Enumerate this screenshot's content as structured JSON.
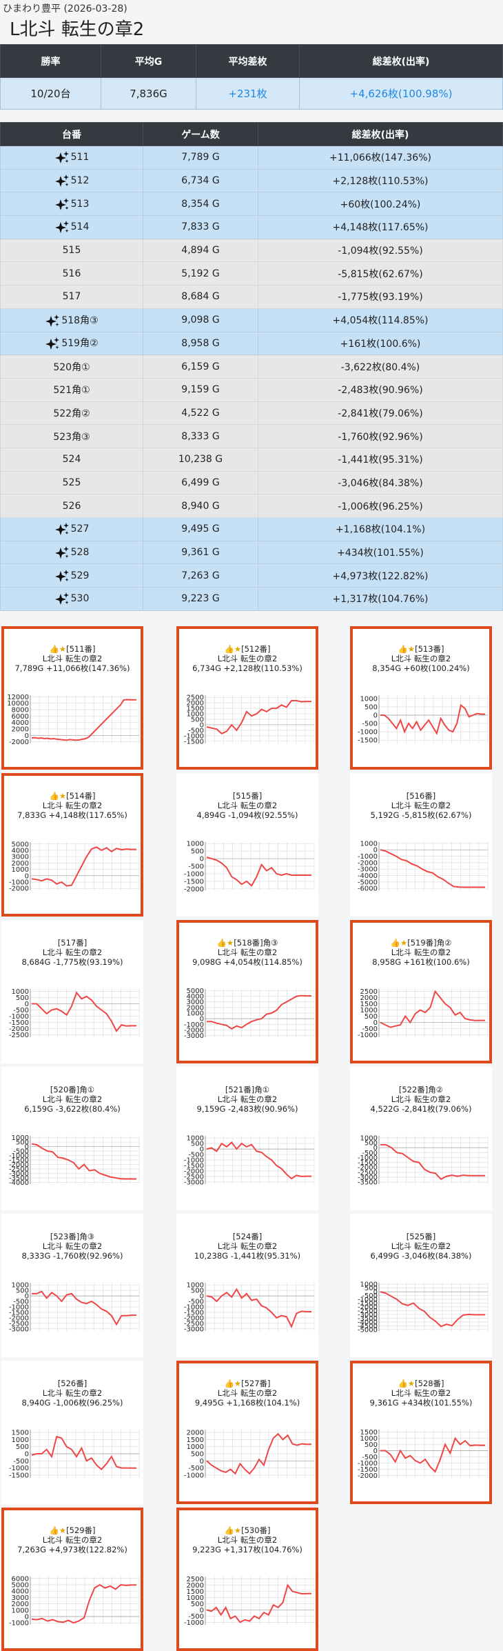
{
  "header": {
    "store_date": "ひまわり豊平 (2026-03-28)",
    "title": "L北斗 転生の章2"
  },
  "summary": {
    "headers": [
      "勝率",
      "平均G",
      "平均差枚",
      "総差枚(出率)"
    ],
    "values": [
      "10/20台",
      "7,836G",
      "+231枚",
      "+4,626枚(100.98%)"
    ]
  },
  "machines": {
    "headers": [
      "台番",
      "ゲーム数",
      "総差枚(出率)"
    ],
    "rows": [
      {
        "no": "511",
        "games": "7,789 G",
        "diff": "+11,066枚(147.36%)",
        "hl": true
      },
      {
        "no": "512",
        "games": "6,734 G",
        "diff": "+2,128枚(110.53%)",
        "hl": true
      },
      {
        "no": "513",
        "games": "8,354 G",
        "diff": "+60枚(100.24%)",
        "hl": true
      },
      {
        "no": "514",
        "games": "7,833 G",
        "diff": "+4,148枚(117.65%)",
        "hl": true
      },
      {
        "no": "515",
        "games": "4,894 G",
        "diff": "-1,094枚(92.55%)",
        "hl": false
      },
      {
        "no": "516",
        "games": "5,192 G",
        "diff": "-5,815枚(62.67%)",
        "hl": false
      },
      {
        "no": "517",
        "games": "8,684 G",
        "diff": "-1,775枚(93.19%)",
        "hl": false
      },
      {
        "no": "518角③",
        "games": "9,098 G",
        "diff": "+4,054枚(114.85%)",
        "hl": true
      },
      {
        "no": "519角②",
        "games": "8,958 G",
        "diff": "+161枚(100.6%)",
        "hl": true
      },
      {
        "no": "520角①",
        "games": "6,159 G",
        "diff": "-3,622枚(80.4%)",
        "hl": false
      },
      {
        "no": "521角①",
        "games": "9,159 G",
        "diff": "-2,483枚(90.96%)",
        "hl": false
      },
      {
        "no": "522角②",
        "games": "4,522 G",
        "diff": "-2,841枚(79.06%)",
        "hl": false
      },
      {
        "no": "523角③",
        "games": "8,333 G",
        "diff": "-1,760枚(92.96%)",
        "hl": false
      },
      {
        "no": "524",
        "games": "10,238 G",
        "diff": "-1,441枚(95.31%)",
        "hl": false
      },
      {
        "no": "525",
        "games": "6,499 G",
        "diff": "-3,046枚(84.38%)",
        "hl": false
      },
      {
        "no": "526",
        "games": "8,940 G",
        "diff": "-1,006枚(96.25%)",
        "hl": false
      },
      {
        "no": "527",
        "games": "9,495 G",
        "diff": "+1,168枚(104.1%)",
        "hl": true
      },
      {
        "no": "528",
        "games": "9,361 G",
        "diff": "+434枚(101.55%)",
        "hl": true
      },
      {
        "no": "529",
        "games": "7,263 G",
        "diff": "+4,973枚(122.82%)",
        "hl": true
      },
      {
        "no": "530",
        "games": "9,223 G",
        "diff": "+1,317枚(104.76%)",
        "hl": true
      }
    ]
  },
  "cards": [
    {
      "label": "[511番]",
      "best": true,
      "name": "L北斗 転生の章2",
      "line": "7,789G +11,066枚(147.36%)",
      "ticks": [
        "12000",
        "10000",
        "8000",
        "6000",
        "4000",
        "2000",
        "0",
        "-2000"
      ],
      "ymin": -2500,
      "ymax": 12500,
      "pts": [
        -800,
        -700,
        -900,
        -800,
        -1000,
        -900,
        -1100,
        -1000,
        -1200,
        -1300,
        -1400,
        -1500,
        -1300,
        -1400,
        -1500,
        -1400,
        -1200,
        -1000,
        -500,
        500,
        1500,
        2500,
        3500,
        4500,
        5500,
        6500,
        7500,
        8500,
        9500,
        11000,
        11100,
        11066,
        11066,
        11066
      ]
    },
    {
      "label": "[512番]",
      "best": true,
      "name": "L北斗 転生の章2",
      "line": "6,734G +2,128枚(110.53%)",
      "ticks": [
        "2500",
        "2000",
        "1500",
        "1000",
        "500",
        "0",
        "-500",
        "-1000",
        "-1500"
      ],
      "ymin": -1700,
      "ymax": 2700,
      "pts": [
        -200,
        -300,
        -400,
        -800,
        -600,
        0,
        -500,
        200,
        1200,
        800,
        1000,
        1400,
        1200,
        1500,
        1500,
        1800,
        1600,
        2200,
        2200,
        2100,
        2128,
        2128
      ]
    },
    {
      "label": "[513番]",
      "best": true,
      "name": "L北斗 転生の章2",
      "line": "8,354G +60枚(100.24%)",
      "ticks": [
        "1000",
        "500",
        "0",
        "-500",
        "-1000",
        "-1500"
      ],
      "ymin": -1700,
      "ymax": 1200,
      "pts": [
        0,
        0,
        -200,
        -500,
        -800,
        -300,
        -1000,
        -500,
        -800,
        -400,
        -900,
        -600,
        -300,
        -700,
        -1100,
        -200,
        -600,
        -900,
        -1000,
        -500,
        600,
        400,
        -100,
        0,
        100,
        60,
        60
      ]
    },
    {
      "label": "[514番]",
      "best": true,
      "name": "L北斗 転生の章2",
      "line": "7,833G +4,148枚(117.65%)",
      "ticks": [
        "5000",
        "4000",
        "3000",
        "2000",
        "1000",
        "0",
        "-1000",
        "-2000"
      ],
      "ymin": -2300,
      "ymax": 5300,
      "pts": [
        -500,
        -600,
        -800,
        -500,
        -700,
        -1300,
        -1000,
        -1600,
        -1500,
        0,
        1500,
        3000,
        4200,
        4500,
        4000,
        4400,
        3800,
        4300,
        4100,
        4200,
        4148,
        4148
      ]
    },
    {
      "label": "[515番]",
      "best": false,
      "name": "L北斗 転生の章2",
      "line": "4,894G -1,094枚(92.55%)",
      "ticks": [
        "1000",
        "500",
        "0",
        "-500",
        "-1000",
        "-1500",
        "-2000"
      ],
      "ymin": -2100,
      "ymax": 1100,
      "pts": [
        100,
        0,
        -100,
        -300,
        -600,
        -1200,
        -1400,
        -1700,
        -1500,
        -1800,
        -1200,
        -400,
        -800,
        -600,
        -1000,
        -1100,
        -1000,
        -1100,
        -1094,
        -1094,
        -1094,
        -1094
      ]
    },
    {
      "label": "[516番]",
      "best": false,
      "name": "L北斗 転生の章2",
      "line": "5,192G -5,815枚(62.67%)",
      "ticks": [
        "1000",
        "0",
        "-1000",
        "-2000",
        "-3000",
        "-4000",
        "-5000",
        "-6000"
      ],
      "ymin": -6300,
      "ymax": 1200,
      "pts": [
        0,
        -200,
        -600,
        -1000,
        -1500,
        -1700,
        -2200,
        -2500,
        -3000,
        -3400,
        -3600,
        -4200,
        -4600,
        -5200,
        -5700,
        -5800,
        -5815,
        -5815,
        -5815,
        -5815,
        -5815
      ]
    },
    {
      "label": "[517番]",
      "best": false,
      "name": "L北斗 転生の章2",
      "line": "8,684G -1,775枚(93.19%)",
      "ticks": [
        "1000",
        "500",
        "0",
        "-500",
        "-1000",
        "-1500",
        "-2000",
        "-2500"
      ],
      "ymin": -2700,
      "ymax": 1200,
      "pts": [
        0,
        0,
        -400,
        -800,
        -500,
        -400,
        -600,
        -900,
        -200,
        900,
        400,
        600,
        300,
        -200,
        -500,
        -800,
        -1400,
        -2200,
        -1700,
        -1800,
        -1775,
        -1775
      ]
    },
    {
      "label": "[518番]角③",
      "best": true,
      "name": "L北斗 転生の章2",
      "line": "9,098G +4,054枚(114.85%)",
      "ticks": [
        "5000",
        "4000",
        "3000",
        "2000",
        "1000",
        "0",
        "-1000",
        "-2000",
        "-3000"
      ],
      "ymin": -3300,
      "ymax": 5300,
      "pts": [
        -500,
        -500,
        -800,
        -1000,
        -1200,
        -1800,
        -1300,
        -1600,
        -1000,
        -500,
        -200,
        0,
        800,
        1000,
        1500,
        2500,
        3000,
        3500,
        4000,
        4100,
        4054,
        4054
      ]
    },
    {
      "label": "[519番]角②",
      "best": true,
      "name": "L北斗 転生の章2",
      "line": "8,958G +161枚(100.6%)",
      "ticks": [
        "2500",
        "2000",
        "1500",
        "1000",
        "500",
        "0",
        "-500",
        "-1000"
      ],
      "ymin": -1200,
      "ymax": 2700,
      "pts": [
        0,
        -200,
        -400,
        -300,
        -200,
        500,
        0,
        700,
        1000,
        800,
        1200,
        2500,
        2000,
        1500,
        1200,
        600,
        800,
        300,
        200,
        150,
        161,
        161
      ]
    },
    {
      "label": "[520番]角①",
      "best": false,
      "name": "L北斗 転生の章2",
      "line": "6,159G -3,622枚(80.4%)",
      "ticks": [
        "1000",
        "500",
        "0",
        "-500",
        "-1000",
        "-1500",
        "-2000",
        "-2500",
        "-3000",
        "-3500",
        "-4000"
      ],
      "ymin": -4200,
      "ymax": 1200,
      "pts": [
        300,
        200,
        -200,
        -500,
        -600,
        -1200,
        -1300,
        -1500,
        -1800,
        -2500,
        -2000,
        -2700,
        -2600,
        -3000,
        -3200,
        -3400,
        -3500,
        -3600,
        -3622,
        -3622,
        -3622
      ]
    },
    {
      "label": "[521番]角①",
      "best": false,
      "name": "L北斗 転生の章2",
      "line": "9,159G -2,483枚(90.96%)",
      "ticks": [
        "1000",
        "500",
        "0",
        "-500",
        "-1000",
        "-1500",
        "-2000",
        "-2500",
        "-3000"
      ],
      "ymin": -3200,
      "ymax": 1200,
      "pts": [
        0,
        100,
        -200,
        500,
        200,
        600,
        0,
        500,
        200,
        400,
        -200,
        -300,
        -700,
        -1000,
        -1500,
        -1800,
        -2300,
        -2700,
        -2400,
        -2500,
        -2483,
        -2483
      ]
    },
    {
      "label": "[522番]角②",
      "best": false,
      "name": "L北斗 転生の章2",
      "line": "4,522G -2,841枚(79.06%)",
      "ticks": [
        "1000",
        "500",
        "0",
        "-500",
        "-1000",
        "-1500",
        "-2000",
        "-2500",
        "-3000",
        "-3500"
      ],
      "ymin": -3700,
      "ymax": 1200,
      "pts": [
        300,
        300,
        0,
        -500,
        -600,
        -1000,
        -1400,
        -1500,
        -2200,
        -2500,
        -2600,
        -3200,
        -2900,
        -2800,
        -2900,
        -2800,
        -2841,
        -2841,
        -2841,
        -2841
      ]
    },
    {
      "label": "[523番]角③",
      "best": false,
      "name": "L北斗 転生の章2",
      "line": "8,333G -1,760枚(92.96%)",
      "ticks": [
        "1000",
        "500",
        "0",
        "-500",
        "-1000",
        "-1500",
        "-2000",
        "-2500",
        "-3000"
      ],
      "ymin": -3200,
      "ymax": 1200,
      "pts": [
        200,
        200,
        400,
        -200,
        300,
        0,
        -500,
        100,
        200,
        -300,
        -600,
        -700,
        -500,
        -800,
        -1200,
        -1400,
        -1800,
        -2600,
        -1800,
        -1800,
        -1760,
        -1760
      ]
    },
    {
      "label": "[524番]",
      "best": false,
      "name": "L北斗 転生の章2",
      "line": "10,238G -1,441枚(95.31%)",
      "ticks": [
        "1000",
        "500",
        "0",
        "-500",
        "-1000",
        "-1500",
        "-2000",
        "-2500",
        "-3000"
      ],
      "ymin": -3200,
      "ymax": 1200,
      "pts": [
        0,
        -100,
        -500,
        0,
        300,
        -100,
        600,
        -200,
        200,
        -400,
        -300,
        -900,
        -1100,
        -1500,
        -2000,
        -1800,
        -1900,
        -2800,
        -1600,
        -1400,
        -1441,
        -1441
      ]
    },
    {
      "label": "[525番]",
      "best": false,
      "name": "L北斗 転生の章2",
      "line": "6,499G -3,046枚(84.38%)",
      "ticks": [
        "1000",
        "500",
        "0",
        "-500",
        "-1000",
        "-1500",
        "-2000",
        "-2500",
        "-3000",
        "-3500",
        "-4000",
        "-4500",
        "-5000"
      ],
      "ymin": -5200,
      "ymax": 1200,
      "pts": [
        0,
        -200,
        -600,
        -1000,
        -1600,
        -1800,
        -1500,
        -2200,
        -2600,
        -3400,
        -3900,
        -4600,
        -4300,
        -4500,
        -3700,
        -3100,
        -3000,
        -3046,
        -3046,
        -3046
      ]
    },
    {
      "label": "[526番]",
      "best": false,
      "name": "L北斗 転生の章2",
      "line": "8,940G -1,006枚(96.25%)",
      "ticks": [
        "1500",
        "1000",
        "500",
        "0",
        "-500",
        "-1000",
        "-1500"
      ],
      "ymin": -1700,
      "ymax": 1700,
      "pts": [
        -100,
        0,
        0,
        300,
        -200,
        1200,
        1100,
        500,
        300,
        -200,
        400,
        -500,
        -300,
        -800,
        -1100,
        -700,
        -200,
        -900,
        -1000,
        -1000,
        -1006,
        -1006
      ]
    },
    {
      "label": "[527番]",
      "best": true,
      "name": "L北斗 転生の章2",
      "line": "9,495G +1,168枚(104.1%)",
      "ticks": [
        "2000",
        "1500",
        "1000",
        "500",
        "0",
        "-500",
        "-1000"
      ],
      "ymin": -1200,
      "ymax": 2200,
      "pts": [
        0,
        -300,
        -500,
        -700,
        -800,
        -600,
        -900,
        -200,
        -600,
        -900,
        -500,
        100,
        -300,
        800,
        1600,
        1900,
        1500,
        1800,
        1200,
        1100,
        1200,
        1168,
        1168
      ]
    },
    {
      "label": "[528番]",
      "best": true,
      "name": "L北斗 転生の章2",
      "line": "9,361G +434枚(101.55%)",
      "ticks": [
        "1500",
        "1000",
        "500",
        "0",
        "-500",
        "-1000",
        "-1500",
        "-2000"
      ],
      "ymin": -2200,
      "ymax": 1700,
      "pts": [
        0,
        0,
        -300,
        -900,
        0,
        -600,
        -400,
        -800,
        -1000,
        -700,
        -1300,
        -1700,
        -700,
        500,
        -200,
        1000,
        500,
        800,
        400,
        450,
        434,
        434
      ]
    },
    {
      "label": "[529番]",
      "best": true,
      "name": "L北斗 転生の章2",
      "line": "7,263G +4,973枚(122.82%)",
      "ticks": [
        "6000",
        "5000",
        "4000",
        "3000",
        "2000",
        "1000",
        "0",
        "-1000"
      ],
      "ymin": -1300,
      "ymax": 6300,
      "pts": [
        -400,
        -500,
        -300,
        -700,
        -500,
        -800,
        -900,
        -600,
        -1000,
        -700,
        -200,
        2500,
        4500,
        5000,
        4500,
        4800,
        4300,
        5000,
        4900,
        4973,
        4973
      ]
    },
    {
      "label": "[530番]",
      "best": true,
      "name": "L北斗 転生の章2",
      "line": "9,223G +1,317枚(104.76%)",
      "ticks": [
        "2500",
        "2000",
        "1500",
        "1000",
        "500",
        "0",
        "-500",
        "-1000"
      ],
      "ymin": -1200,
      "ymax": 2700,
      "pts": [
        0,
        -100,
        200,
        -400,
        200,
        -700,
        -500,
        -1000,
        -800,
        -900,
        -500,
        -700,
        -200,
        -400,
        400,
        200,
        600,
        2000,
        1500,
        1400,
        1300,
        1317,
        1317
      ]
    }
  ],
  "colors": {
    "header_bg": "#343a40",
    "row_hl": "#c6e0f6",
    "row_nm": "#e7e7e7",
    "accent_blue": "#1e88e5",
    "best_border": "#dd4a1c",
    "line": "#f04545"
  }
}
